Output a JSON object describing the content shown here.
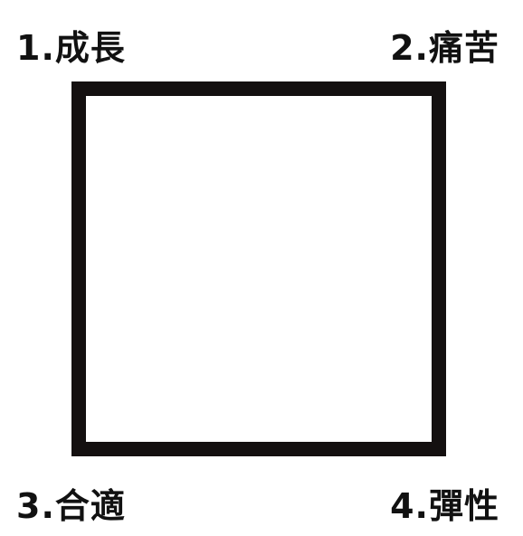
{
  "diagram": {
    "labels": {
      "top_left": "1.成長",
      "top_right": "2.痛苦",
      "bottom_left": "3.合適",
      "bottom_right": "4.彈性"
    },
    "colors": {
      "text": "#111111",
      "frame": "#141010",
      "background": "#ffffff"
    }
  }
}
